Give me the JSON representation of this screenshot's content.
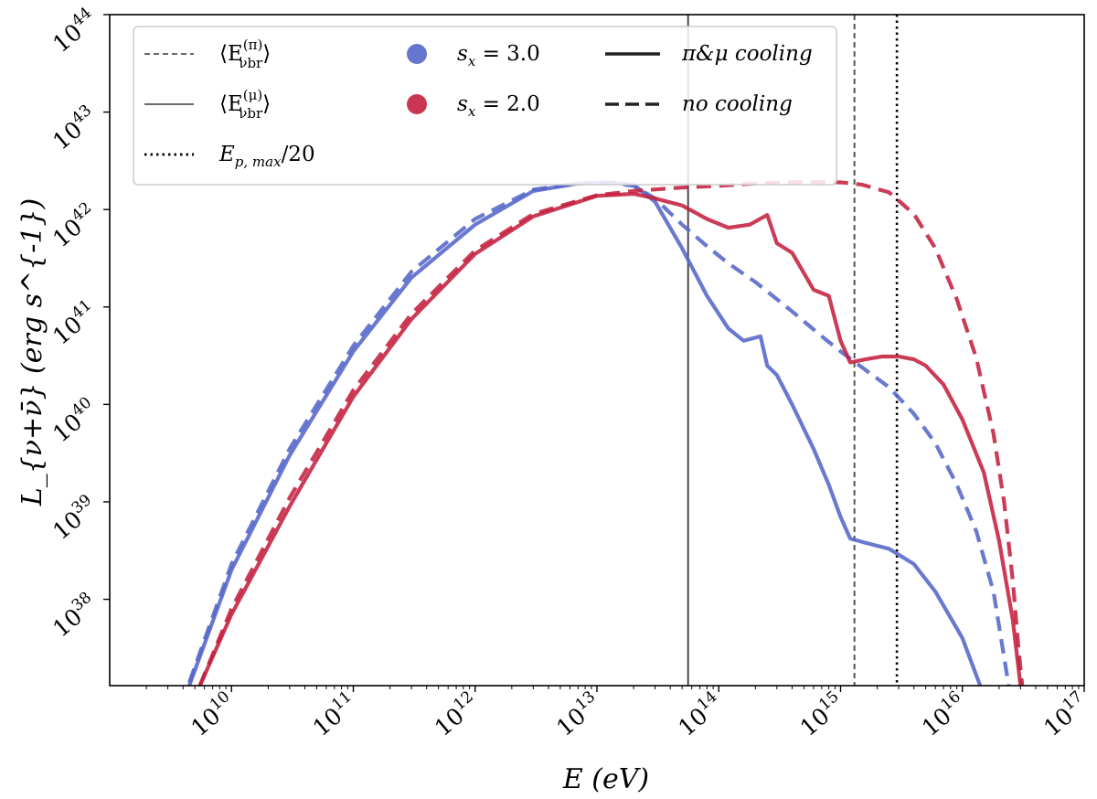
{
  "chart_data": {
    "type": "line",
    "xlabel": "E (eV)",
    "ylabel": "L_{ν+ν̄} (erg s^{-1})",
    "xscale": "log",
    "yscale": "log",
    "xlim": [
      1000000000.0,
      1e+17
    ],
    "ylim": [
      1.3e+37,
      1e+44
    ],
    "grid": false,
    "legend_placement": "top-left",
    "x_ticks": [
      {
        "base": "10",
        "exp": "10"
      },
      {
        "base": "10",
        "exp": "11"
      },
      {
        "base": "10",
        "exp": "12"
      },
      {
        "base": "10",
        "exp": "13"
      },
      {
        "base": "10",
        "exp": "14"
      },
      {
        "base": "10",
        "exp": "15"
      },
      {
        "base": "10",
        "exp": "16"
      },
      {
        "base": "10",
        "exp": "17"
      }
    ],
    "y_ticks": [
      {
        "base": "10",
        "exp": "38"
      },
      {
        "base": "10",
        "exp": "39"
      },
      {
        "base": "10",
        "exp": "40"
      },
      {
        "base": "10",
        "exp": "41"
      },
      {
        "base": "10",
        "exp": "42"
      },
      {
        "base": "10",
        "exp": "43"
      },
      {
        "base": "10",
        "exp": "44"
      }
    ],
    "vertical_lines": [
      {
        "x": 56000000000000.0,
        "style": "solid",
        "color": "#4a4a4a"
      },
      {
        "x": 1300000000000000.0,
        "style": "dashed",
        "color": "#555555"
      },
      {
        "x": 2900000000000000.0,
        "style": "dotted",
        "color": "#000000"
      }
    ],
    "legend": {
      "vlines": [
        {
          "label_main": "⟨E",
          "label_sup": "(π)",
          "label_sub": "νbr",
          "label_close": "⟩",
          "style": "dashed"
        },
        {
          "label_main": "⟨E",
          "label_sup": "(μ)",
          "label_sub": "νbr",
          "label_close": "⟩",
          "style": "solid"
        },
        {
          "label_main": "E",
          "label_sub": "p, max",
          "label_close": "/20",
          "style": "dotted"
        }
      ],
      "spectral_index": [
        {
          "label": "s",
          "sub": "x",
          "value": " = 3.0",
          "color": "#5566c8"
        },
        {
          "label": "s",
          "sub": "x",
          "value": " = 2.0",
          "color": "#c4203f"
        }
      ],
      "cooling": [
        {
          "label": "π&μ cooling",
          "style": "solid"
        },
        {
          "label": "no cooling",
          "style": "dashed"
        }
      ]
    },
    "series": [
      {
        "color": "#5566c8",
        "style": "solid",
        "x": [
          4500000000.0,
          10000000000.0,
          30000000000.0,
          100000000000.0,
          300000000000.0,
          1000000000000.0,
          3000000000000.0,
          7000000000000.0,
          13000000000000.0,
          20000000000000.0,
          30000000000000.0,
          50000000000000.0,
          80000000000000.0,
          120000000000000.0,
          160000000000000.0,
          220000000000000.0,
          250000000000000.0,
          300000000000000.0,
          400000000000000.0,
          600000000000000.0,
          800000000000000.0,
          1000000000000000.0,
          1200000000000000.0,
          1600000000000000.0,
          2500000000000000.0,
          4000000000000000.0,
          6000000000000000.0,
          1e+16,
          1.4e+16
        ],
        "y": [
          1.3e+37,
          2e+38,
          3e+39,
          3.5e+40,
          2e+41,
          7e+41,
          1.55e+42,
          1.85e+42,
          1.9e+42,
          1.8e+42,
          1.2e+42,
          4e+41,
          1.3e+41,
          6e+40,
          4.5e+40,
          5e+40,
          2.5e+40,
          2e+40,
          1e+40,
          3.5e+39,
          1.5e+39,
          7e+38,
          4.2e+38,
          3.8e+38,
          3.3e+38,
          2.3e+38,
          1.2e+38,
          4e+37,
          1.3e+37
        ]
      },
      {
        "color": "#5566c8",
        "style": "dashed",
        "x": [
          4500000000.0,
          10000000000.0,
          30000000000.0,
          100000000000.0,
          300000000000.0,
          1000000000000.0,
          3000000000000.0,
          7000000000000.0,
          12000000000000.0,
          20000000000000.0,
          30000000000000.0,
          50000000000000.0,
          80000000000000.0,
          120000000000000.0,
          200000000000000.0,
          400000000000000.0,
          700000000000000.0,
          1000000000000000.0,
          1500000000000000.0,
          2500000000000000.0,
          4000000000000000.0,
          6000000000000000.0,
          9000000000000000.0,
          1.3e+16,
          1.8e+16,
          2.4e+16
        ],
        "y": [
          1.4e+37,
          2.3e+38,
          3.5e+39,
          4e+40,
          2.3e+41,
          8e+41,
          1.6e+42,
          1.85e+42,
          1.9e+42,
          1.75e+42,
          1.3e+42,
          7e+41,
          4.2e+41,
          2.8e+41,
          1.8e+41,
          9e+40,
          5e+40,
          3.5e+40,
          2.4e+40,
          1.5e+40,
          8e+39,
          4e+39,
          1.5e+39,
          5e+38,
          1.2e+38,
          1.3e+37
        ]
      },
      {
        "color": "#c4203f",
        "style": "solid",
        "x": [
          5500000000.0,
          10000000000.0,
          30000000000.0,
          100000000000.0,
          300000000000.0,
          1000000000000.0,
          3000000000000.0,
          10000000000000.0,
          20000000000000.0,
          30000000000000.0,
          50000000000000.0,
          80000000000000.0,
          120000000000000.0,
          180000000000000.0,
          250000000000000.0,
          300000000000000.0,
          400000000000000.0,
          600000000000000.0,
          800000000000000.0,
          1000000000000000.0,
          1200000000000000.0,
          1600000000000000.0,
          2200000000000000.0,
          3000000000000000.0,
          4000000000000000.0,
          5000000000000000.0,
          7000000000000000.0,
          1e+16,
          1.5e+16,
          2e+16,
          2.6e+16,
          3e+16
        ],
        "y": [
          1.3e+37,
          7e+37,
          9e+38,
          1.2e+40,
          7.5e+40,
          3.5e+41,
          8.5e+41,
          1.38e+42,
          1.45e+42,
          1.3e+42,
          1.1e+42,
          8e+41,
          6.5e+41,
          7e+41,
          8.8e+41,
          4.5e+41,
          3.6e+41,
          1.5e+41,
          1.3e+41,
          4.5e+40,
          2.7e+40,
          2.9e+40,
          3.1e+40,
          3.1e+40,
          2.9e+40,
          2.5e+40,
          1.6e+40,
          7e+39,
          2e+39,
          4e+38,
          6e+37,
          1.3e+37
        ]
      },
      {
        "color": "#c4203f",
        "style": "dashed",
        "x": [
          5500000000.0,
          10000000000.0,
          30000000000.0,
          100000000000.0,
          300000000000.0,
          1000000000000.0,
          3000000000000.0,
          10000000000000.0,
          20000000000000.0,
          50000000000000.0,
          100000000000000.0,
          200000000000000.0,
          500000000000000.0,
          1000000000000000.0,
          1500000000000000.0,
          2500000000000000.0,
          4000000000000000.0,
          6000000000000000.0,
          9000000000000000.0,
          1.3e+16,
          1.8e+16,
          2.2e+16,
          2.6e+16,
          2.9e+16,
          3.1e+16
        ],
        "y": [
          1.3e+37,
          8e+37,
          1.1e+39,
          1.4e+40,
          8.5e+40,
          3.8e+41,
          9e+41,
          1.4e+42,
          1.55e+42,
          1.68e+42,
          1.75e+42,
          1.85e+42,
          1.92e+42,
          1.9e+42,
          1.8e+42,
          1.5e+42,
          9e+41,
          4e+41,
          1.2e+41,
          3e+40,
          5e+39,
          1e+39,
          1.5e+38,
          3e+37,
          1.3e+37
        ]
      }
    ]
  }
}
